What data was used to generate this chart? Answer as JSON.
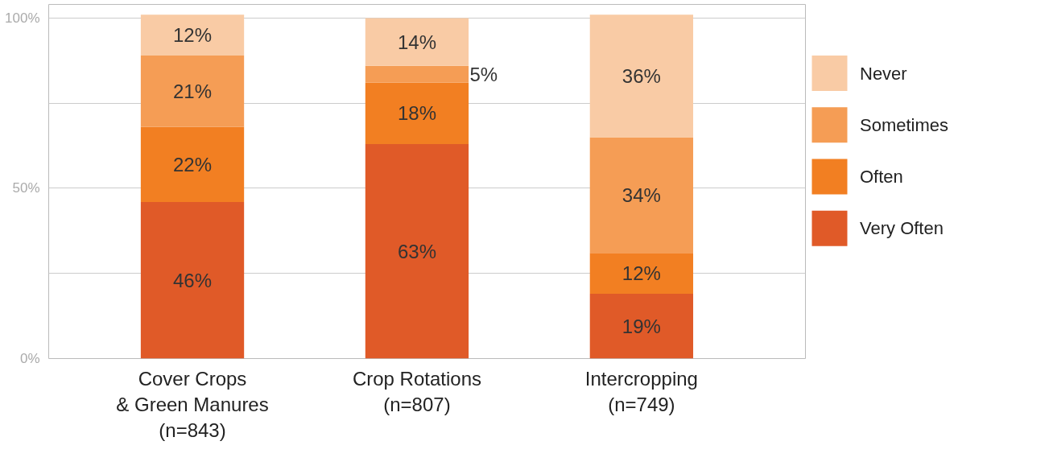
{
  "chart_data": {
    "type": "bar",
    "stacked": true,
    "categories": [
      "Cover Crops\n& Green Manures\n(n=843)",
      "Crop Rotations\n(n=807)",
      "Intercropping\n(n=749)"
    ],
    "series": [
      {
        "name": "Very Often",
        "color": "#e05a28",
        "values": [
          46,
          63,
          19
        ],
        "value_labels": [
          "46%",
          "63%",
          "19%"
        ]
      },
      {
        "name": "Often",
        "color": "#f27f22",
        "values": [
          22,
          18,
          12
        ],
        "value_labels": [
          "22%",
          "18%",
          "12%"
        ]
      },
      {
        "name": "Sometimes",
        "color": "#f59d55",
        "values": [
          21,
          5,
          34
        ],
        "value_labels": [
          "21%",
          "5%",
          "34%"
        ]
      },
      {
        "name": "Never",
        "color": "#f9cba5",
        "values": [
          12,
          14,
          36
        ],
        "value_labels": [
          "12%",
          "14%",
          "36%"
        ]
      }
    ],
    "ylim": [
      0,
      104
    ],
    "yticks": [
      {
        "value": 0,
        "label": "0%"
      },
      {
        "value": 25,
        "label": null
      },
      {
        "value": 50,
        "label": "50%"
      },
      {
        "value": 75,
        "label": null
      },
      {
        "value": 100,
        "label": "100%"
      }
    ],
    "grid": "y",
    "legend": "right"
  }
}
